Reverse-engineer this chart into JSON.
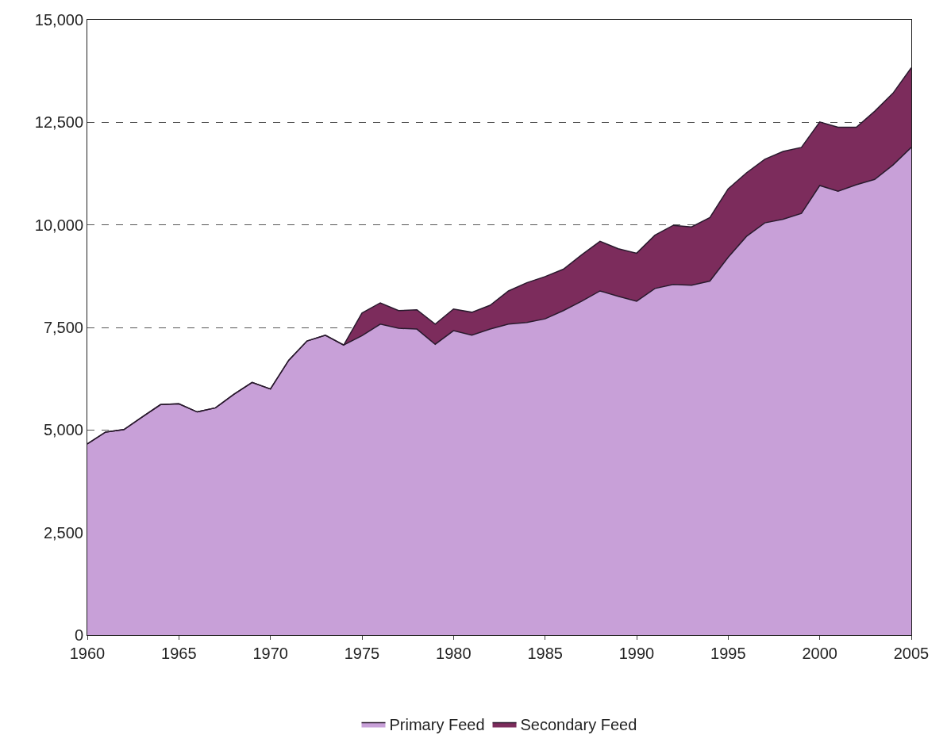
{
  "chart_data": {
    "type": "area",
    "stacked": true,
    "x": [
      1960,
      1961,
      1962,
      1963,
      1964,
      1965,
      1966,
      1967,
      1968,
      1969,
      1970,
      1971,
      1972,
      1973,
      1974,
      1975,
      1976,
      1977,
      1978,
      1979,
      1980,
      1981,
      1982,
      1983,
      1984,
      1985,
      1986,
      1987,
      1988,
      1989,
      1990,
      1991,
      1992,
      1993,
      1994,
      1995,
      1996,
      1997,
      1998,
      1999,
      2000,
      2001,
      2002,
      2003,
      2004,
      2005
    ],
    "series": [
      {
        "name": "Primary Feed",
        "color": "#c8a0d8",
        "values": [
          4660,
          4950,
          5010,
          5320,
          5620,
          5640,
          5440,
          5540,
          5870,
          6160,
          6000,
          6700,
          7170,
          7310,
          7070,
          7300,
          7580,
          7480,
          7460,
          7090,
          7420,
          7310,
          7460,
          7580,
          7620,
          7710,
          7910,
          8140,
          8390,
          8260,
          8140,
          8450,
          8550,
          8530,
          8630,
          9210,
          9720,
          10050,
          10140,
          10280,
          10960,
          10820,
          10980,
          11110,
          11460,
          11890
        ]
      },
      {
        "name": "Secondary Feed",
        "color": "#7c2c5c",
        "values": [
          0,
          0,
          0,
          0,
          0,
          0,
          0,
          0,
          0,
          0,
          0,
          0,
          0,
          0,
          0,
          550,
          520,
          430,
          470,
          490,
          530,
          560,
          580,
          810,
          970,
          1030,
          1010,
          1130,
          1210,
          1160,
          1170,
          1300,
          1440,
          1420,
          1550,
          1670,
          1550,
          1550,
          1650,
          1610,
          1550,
          1560,
          1400,
          1660,
          1750,
          1940
        ]
      }
    ],
    "xlim": [
      1960,
      2005
    ],
    "xticks": [
      1960,
      1965,
      1970,
      1975,
      1980,
      1985,
      1990,
      1995,
      2000,
      2005
    ],
    "ylim": [
      0,
      15000
    ],
    "yticks": [
      {
        "value": 0,
        "label": "0"
      },
      {
        "value": 2500,
        "label": "2,500"
      },
      {
        "value": 5000,
        "label": "5,000"
      },
      {
        "value": 7500,
        "label": "7,500"
      },
      {
        "value": 10000,
        "label": "10,000"
      },
      {
        "value": 12500,
        "label": "12,500"
      },
      {
        "value": 15000,
        "label": "15,000"
      }
    ],
    "grid": "y",
    "legend": "bottom",
    "line_style": "solid"
  }
}
